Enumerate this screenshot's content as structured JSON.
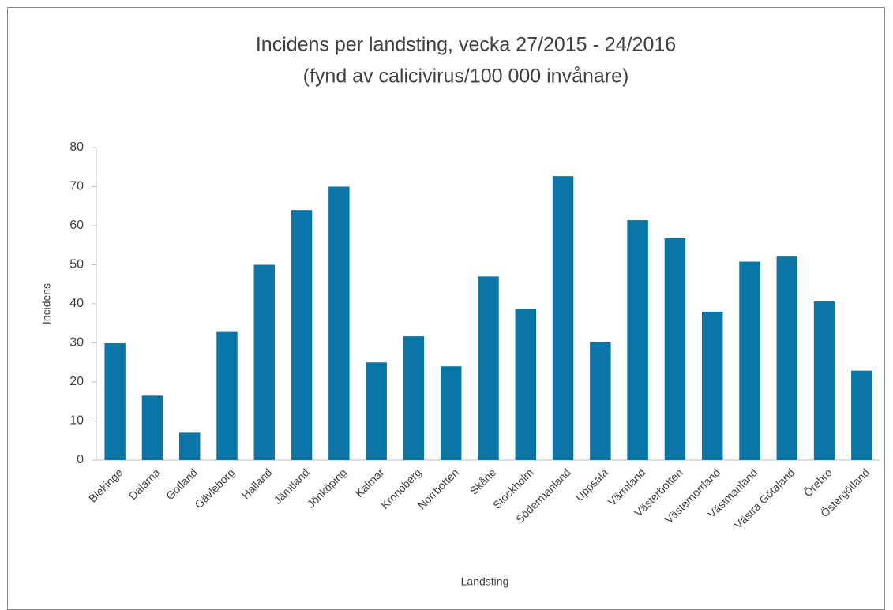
{
  "chart_data": {
    "type": "bar",
    "title": "Incidens per landsting, vecka 27/2015 - 24/2016",
    "subtitle": "(fynd av calicivirus/100 000 invånare)",
    "x_label": "Landsting",
    "y_label": "Incidens",
    "categories": [
      "Blekinge",
      "Dalarna",
      "Gotland",
      "Gävleborg",
      "Halland",
      "Jämtland",
      "Jönköping",
      "Kalmar",
      "Kronoberg",
      "Norrbotten",
      "Skåne",
      "Stockholm",
      "Södermanland",
      "Uppsala",
      "Värmland",
      "Västerbotten",
      "Västernorrland",
      "Västmanland",
      "Västra Götaland",
      "Örebro",
      "Östergötland"
    ],
    "values": [
      29.9,
      16.5,
      7,
      32.8,
      50,
      64,
      70,
      25,
      31.7,
      24,
      47,
      38.6,
      72.7,
      30.1,
      61.4,
      56.8,
      38,
      50.8,
      52.1,
      40.6,
      22.9
    ],
    "color": "#0a76a8",
    "ylim": [
      0,
      80
    ],
    "yticks": [
      0,
      10,
      20,
      30,
      40,
      50,
      60,
      70,
      80
    ],
    "grid": false
  }
}
